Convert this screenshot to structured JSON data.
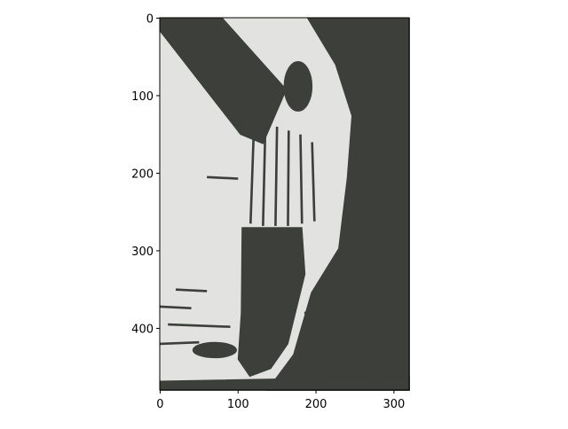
{
  "chart_data": {
    "type": "image",
    "xlim": [
      -0.5,
      319.5
    ],
    "ylim": [
      479.5,
      -0.5
    ],
    "xticks": [
      0,
      100,
      200,
      300
    ],
    "yticks": [
      0,
      100,
      200,
      300,
      400
    ],
    "colors": [
      "#3d3f3b",
      "#e2e2e0"
    ]
  }
}
